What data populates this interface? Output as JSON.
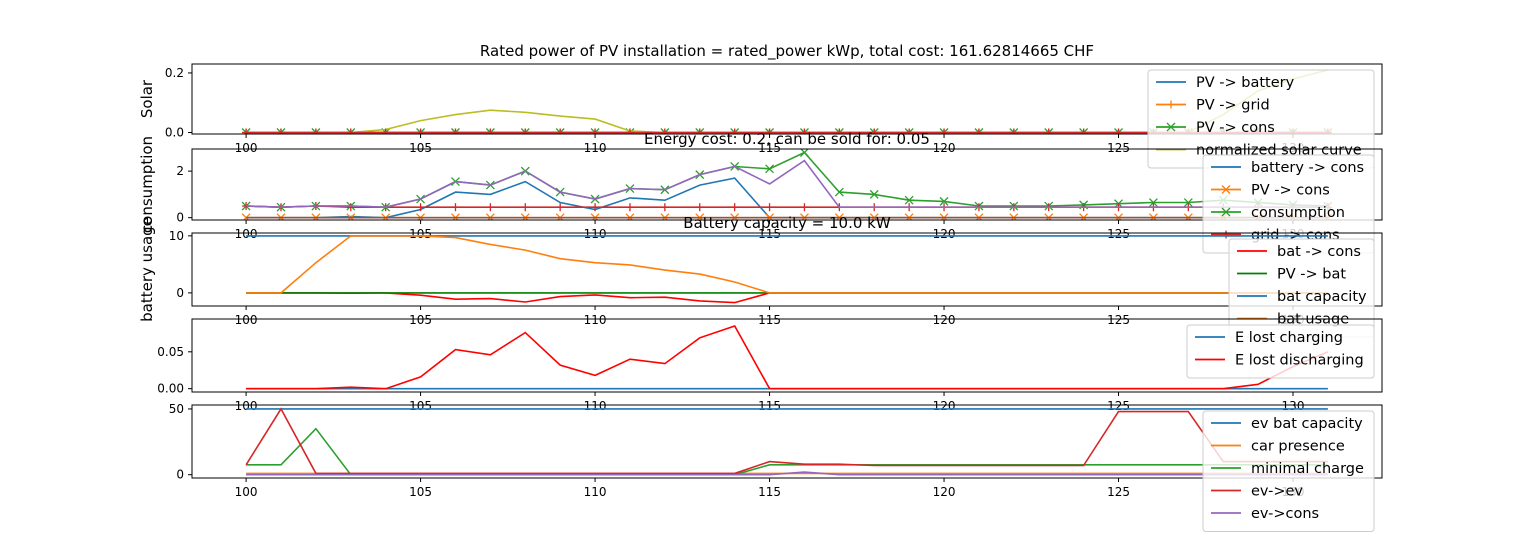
{
  "figure": {
    "title": "Rated power of PV installation = rated_power kWp, total cost: 161.62814665 CHF"
  },
  "chart_data": [
    {
      "type": "line",
      "title": "",
      "ylabel": "Solar",
      "xlim": [
        98.45,
        132.55
      ],
      "ylim": [
        -0.005,
        0.23
      ],
      "x_ticks": [
        100,
        105,
        110,
        115,
        120,
        125,
        130
      ],
      "x_tick_labels": [
        "100",
        "105",
        "110",
        "115",
        "120",
        "125",
        "130"
      ],
      "y_ticks": [
        0.0,
        0.2
      ],
      "y_tick_labels": [
        "0.0",
        "0.2"
      ],
      "legend_position": "upper-right",
      "x": [
        100,
        101,
        102,
        103,
        104,
        105,
        106,
        107,
        108,
        109,
        110,
        111,
        112,
        113,
        114,
        115,
        116,
        117,
        118,
        119,
        120,
        121,
        122,
        123,
        124,
        125,
        126,
        127,
        128,
        129,
        130,
        131
      ],
      "series": [
        {
          "name": "PV -> battery",
          "color": "#1f77b4",
          "marker": "",
          "values": [
            0,
            0,
            0,
            0,
            0,
            0,
            0,
            0,
            0,
            0,
            0,
            0,
            0,
            0,
            0,
            0,
            0,
            0,
            0,
            0,
            0,
            0,
            0,
            0,
            0,
            0,
            0,
            0,
            0,
            0,
            0,
            0
          ]
        },
        {
          "name": "PV -> grid",
          "color": "#ff7f0e",
          "marker": "+",
          "values": [
            0,
            0,
            0,
            0,
            0,
            0,
            0,
            0,
            0,
            0,
            0,
            0,
            0,
            0,
            0,
            0,
            0,
            0,
            0,
            0,
            0,
            0,
            0,
            0,
            0,
            0,
            0,
            0,
            0,
            0,
            0,
            0
          ]
        },
        {
          "name": "PV -> cons",
          "color": "#2ca02c",
          "marker": "x",
          "values": [
            0,
            0,
            0,
            0,
            0,
            0,
            0,
            0,
            0,
            0,
            0,
            0,
            0,
            0,
            0,
            0,
            0,
            0,
            0,
            0,
            0,
            0,
            0,
            0,
            0,
            0,
            0,
            0,
            0,
            0,
            0,
            0
          ]
        },
        {
          "name": "normalized solar curve",
          "color": "#bcbd22",
          "marker": "",
          "values": [
            0,
            0,
            0,
            0,
            0.01,
            0.04,
            0.06,
            0.075,
            0.068,
            0.055,
            0.045,
            0.005,
            0,
            0,
            0,
            0,
            0,
            0,
            0,
            0,
            0,
            0,
            0,
            0,
            0,
            0,
            0,
            0,
            0.06,
            0.14,
            0.18,
            0.21
          ]
        },
        {
          "name": "",
          "color": "#d62728",
          "marker": "+",
          "values": [
            0,
            0,
            0,
            0,
            0,
            0,
            0,
            0,
            0,
            0,
            0,
            0,
            0,
            0,
            0,
            0,
            0,
            0,
            0,
            0,
            0,
            0,
            0,
            0,
            0,
            0,
            0,
            0,
            0,
            0,
            0,
            0
          ]
        }
      ]
    },
    {
      "type": "line",
      "title": "Energy cost: 0.2, can be sold for: 0.05",
      "ylabel": "consumption",
      "xlim": [
        98.45,
        132.55
      ],
      "ylim": [
        -0.1,
        2.95
      ],
      "x_ticks": [
        100,
        105,
        110,
        115,
        120,
        125,
        130
      ],
      "x_tick_labels": [
        "100",
        "105",
        "110",
        "115",
        "120",
        "125",
        "130"
      ],
      "y_ticks": [
        0,
        2
      ],
      "y_tick_labels": [
        "0",
        "2"
      ],
      "legend_position": "upper-right",
      "x": [
        100,
        101,
        102,
        103,
        104,
        105,
        106,
        107,
        108,
        109,
        110,
        111,
        112,
        113,
        114,
        115,
        116,
        117,
        118,
        119,
        120,
        121,
        122,
        123,
        124,
        125,
        126,
        127,
        128,
        129,
        130,
        131
      ],
      "series": [
        {
          "name": "battery -> cons",
          "color": "#1f77b4",
          "marker": "",
          "values": [
            0,
            0,
            0,
            0.05,
            0,
            0.35,
            1.1,
            1.0,
            1.55,
            0.65,
            0.35,
            0.85,
            0.75,
            1.4,
            1.7,
            0,
            0,
            0,
            0,
            0,
            0,
            0,
            0,
            0,
            0,
            0,
            0,
            0,
            0,
            0,
            0,
            0
          ]
        },
        {
          "name": "PV -> cons",
          "color": "#ff7f0e",
          "marker": "x",
          "values": [
            0,
            0,
            0,
            0,
            0,
            0,
            0,
            0,
            0,
            0,
            0,
            0,
            0,
            0,
            0,
            0,
            0,
            0,
            0,
            0,
            0,
            0,
            0,
            0,
            0,
            0,
            0,
            0,
            0,
            0,
            0,
            0
          ]
        },
        {
          "name": "consumption",
          "color": "#2ca02c",
          "marker": "x",
          "values": [
            0.5,
            0.45,
            0.5,
            0.5,
            0.45,
            0.8,
            1.55,
            1.4,
            2.0,
            1.1,
            0.8,
            1.25,
            1.2,
            1.85,
            2.2,
            2.1,
            2.8,
            1.1,
            1.0,
            0.75,
            0.7,
            0.5,
            0.5,
            0.5,
            0.55,
            0.6,
            0.65,
            0.65,
            0.75,
            0.65,
            0.55,
            0.5
          ]
        },
        {
          "name": "grid -> cons",
          "color": "#d62728",
          "marker": "+",
          "values": [
            0.5,
            0.45,
            0.5,
            0.45,
            0.45,
            0.45,
            0.45,
            0.45,
            0.45,
            0.45,
            0.45,
            0.45,
            0.45,
            0.45,
            0.45,
            0.45,
            0.45,
            0.45,
            0.45,
            0.45,
            0.45,
            0.45,
            0.45,
            0.45,
            0.45,
            0.45,
            0.45,
            0.45,
            0.45,
            0.45,
            0.45,
            0.45
          ]
        },
        {
          "name": "",
          "color": "#9467bd",
          "marker": "",
          "values": [
            0.5,
            0.45,
            0.5,
            0.5,
            0.45,
            0.8,
            1.55,
            1.4,
            2.0,
            1.1,
            0.8,
            1.25,
            1.2,
            1.85,
            2.2,
            1.45,
            2.45,
            0.45,
            0.45,
            0.45,
            0.45,
            0.45,
            0.45,
            0.45,
            0.45,
            0.45,
            0.45,
            0.45,
            0.45,
            0.45,
            0.45,
            0.45
          ]
        },
        {
          "name": "",
          "color": "#8c564b",
          "marker": "",
          "values": [
            0,
            0,
            0,
            0,
            0,
            0,
            0,
            0,
            0,
            0,
            0,
            0,
            0,
            0,
            0,
            0,
            0,
            0,
            0,
            0,
            0,
            0,
            0,
            0,
            0,
            0,
            0,
            0,
            0,
            0,
            0,
            0
          ]
        }
      ]
    },
    {
      "type": "line",
      "title": "Battery capacity = 10.0 kW",
      "ylabel": "battery usage",
      "xlim": [
        98.45,
        132.55
      ],
      "ylim": [
        -2.3,
        10.5
      ],
      "x_ticks": [
        100,
        105,
        110,
        115,
        120,
        125,
        130
      ],
      "x_tick_labels": [
        "100",
        "105",
        "110",
        "115",
        "120",
        "125",
        "130"
      ],
      "y_ticks": [
        0,
        10
      ],
      "y_tick_labels": [
        "0",
        "10"
      ],
      "legend_position": "upper-right",
      "x": [
        100,
        101,
        102,
        103,
        104,
        105,
        106,
        107,
        108,
        109,
        110,
        111,
        112,
        113,
        114,
        115,
        116,
        117,
        118,
        119,
        120,
        121,
        122,
        123,
        124,
        125,
        126,
        127,
        128,
        129,
        130,
        131
      ],
      "series": [
        {
          "name": "bat -> cons",
          "color": "#ff0000",
          "marker": "",
          "values": [
            0,
            0,
            0,
            -0.05,
            0,
            -0.4,
            -1.1,
            -1.0,
            -1.6,
            -0.65,
            -0.35,
            -0.85,
            -0.75,
            -1.4,
            -1.7,
            0,
            0,
            0,
            0,
            0,
            0,
            0,
            0,
            0,
            0,
            0,
            0,
            0,
            0,
            0,
            0,
            0
          ]
        },
        {
          "name": "PV -> bat",
          "color": "#008000",
          "marker": "",
          "values": [
            0,
            0,
            0,
            0,
            0,
            0,
            0,
            0,
            0,
            0,
            0,
            0,
            0,
            0,
            0,
            0,
            0,
            0,
            0,
            0,
            0,
            0,
            0,
            0,
            0,
            0,
            0,
            0,
            0,
            0,
            0,
            0
          ]
        },
        {
          "name": "bat capacity",
          "color": "#1f77b4",
          "marker": "",
          "values": [
            10,
            10,
            10,
            10,
            10,
            10,
            10,
            10,
            10,
            10,
            10,
            10,
            10,
            10,
            10,
            10,
            10,
            10,
            10,
            10,
            10,
            10,
            10,
            10,
            10,
            10,
            10,
            10,
            10,
            10,
            10,
            10
          ]
        },
        {
          "name": "bat usage",
          "color": "#ff7f0e",
          "marker": "",
          "values": [
            0,
            0,
            5.3,
            10,
            10,
            10,
            9.7,
            8.5,
            7.5,
            6.0,
            5.3,
            4.9,
            4.0,
            3.3,
            1.9,
            0,
            0,
            0,
            0,
            0,
            0,
            0,
            0,
            0,
            0,
            0,
            0,
            0,
            0,
            0,
            0,
            0
          ]
        }
      ]
    },
    {
      "type": "line",
      "title": "",
      "ylabel": "",
      "xlim": [
        98.45,
        132.55
      ],
      "ylim": [
        -0.0045,
        0.0945
      ],
      "x_ticks": [
        100,
        105,
        110,
        115,
        120,
        125,
        130
      ],
      "x_tick_labels": [
        "100",
        "105",
        "110",
        "115",
        "120",
        "125",
        "130"
      ],
      "y_ticks": [
        0.0,
        0.05
      ],
      "y_tick_labels": [
        "0.00",
        "0.05"
      ],
      "legend_position": "upper-right",
      "x": [
        100,
        101,
        102,
        103,
        104,
        105,
        106,
        107,
        108,
        109,
        110,
        111,
        112,
        113,
        114,
        115,
        116,
        117,
        118,
        119,
        120,
        121,
        122,
        123,
        124,
        125,
        126,
        127,
        128,
        129,
        130,
        131
      ],
      "series": [
        {
          "name": "E lost charging",
          "color": "#1f77b4",
          "marker": "",
          "values": [
            0,
            0,
            0,
            0,
            0,
            0,
            0,
            0,
            0,
            0,
            0,
            0,
            0,
            0,
            0,
            0,
            0,
            0,
            0,
            0,
            0,
            0,
            0,
            0,
            0,
            0,
            0,
            0,
            0,
            0,
            0,
            0
          ]
        },
        {
          "name": "E lost discharging",
          "color": "#ff0000",
          "marker": "",
          "values": [
            0,
            0,
            0,
            0.002,
            0,
            0.016,
            0.053,
            0.046,
            0.076,
            0.032,
            0.018,
            0.04,
            0.034,
            0.069,
            0.085,
            0,
            0,
            0,
            0,
            0,
            0,
            0,
            0,
            0,
            0,
            0,
            0,
            0,
            0,
            0.006,
            0.03,
            0.05
          ]
        }
      ]
    },
    {
      "type": "line",
      "title": "",
      "ylabel": "",
      "xlim": [
        98.45,
        132.55
      ],
      "ylim": [
        -2.5,
        53.0
      ],
      "x_ticks": [
        100,
        105,
        110,
        115,
        120,
        125,
        130
      ],
      "x_tick_labels": [
        "100",
        "105",
        "110",
        "115",
        "120",
        "125",
        "130"
      ],
      "y_ticks": [
        0,
        50
      ],
      "y_tick_labels": [
        "0",
        "50"
      ],
      "legend_position": "upper-right",
      "x": [
        100,
        101,
        102,
        103,
        104,
        105,
        106,
        107,
        108,
        109,
        110,
        111,
        112,
        113,
        114,
        115,
        116,
        117,
        118,
        119,
        120,
        121,
        122,
        123,
        124,
        125,
        126,
        127,
        128,
        129,
        130,
        131
      ],
      "series": [
        {
          "name": "ev bat capacity",
          "color": "#1f77b4",
          "marker": "",
          "values": [
            50,
            50,
            50,
            50,
            50,
            50,
            50,
            50,
            50,
            50,
            50,
            50,
            50,
            50,
            50,
            50,
            50,
            50,
            50,
            50,
            50,
            50,
            50,
            50,
            50,
            50,
            50,
            50,
            50,
            50,
            50,
            50
          ]
        },
        {
          "name": "car presence",
          "color": "#ff7f0e",
          "marker": "",
          "values": [
            1,
            1,
            1,
            1,
            1,
            1,
            1,
            1,
            1,
            1,
            1,
            1,
            1,
            1,
            1,
            1,
            1,
            1,
            1,
            1,
            1,
            1,
            1,
            1,
            1,
            1,
            1,
            1,
            1,
            1,
            1,
            1
          ]
        },
        {
          "name": "minimal charge",
          "color": "#2ca02c",
          "marker": "",
          "values": [
            7.5,
            7.5,
            35,
            0,
            0,
            0,
            0,
            0,
            0,
            0,
            0,
            0,
            0,
            0,
            0,
            7.5,
            7.5,
            7.5,
            7.5,
            7.5,
            7.5,
            7.5,
            7.5,
            7.5,
            7.5,
            7.5,
            7.5,
            7.5,
            7.5,
            7.5,
            7.5,
            7.5
          ]
        },
        {
          "name": "ev->ev",
          "color": "#d62728",
          "marker": "",
          "values": [
            7.5,
            50,
            1,
            1,
            1,
            1,
            1,
            1,
            1,
            1,
            1,
            1,
            1,
            1,
            1,
            10,
            8,
            8,
            7,
            7,
            7,
            7,
            7,
            7,
            7,
            48,
            48,
            48,
            10,
            10,
            10,
            10
          ]
        },
        {
          "name": "ev->cons",
          "color": "#9467bd",
          "marker": "",
          "values": [
            0,
            0,
            0,
            0,
            0,
            0,
            0,
            0,
            0,
            0,
            0,
            0,
            0,
            0,
            0,
            0,
            2,
            0,
            0,
            0,
            0,
            0,
            0,
            0,
            0,
            0,
            0,
            0,
            0,
            0,
            0,
            0
          ]
        }
      ]
    }
  ]
}
